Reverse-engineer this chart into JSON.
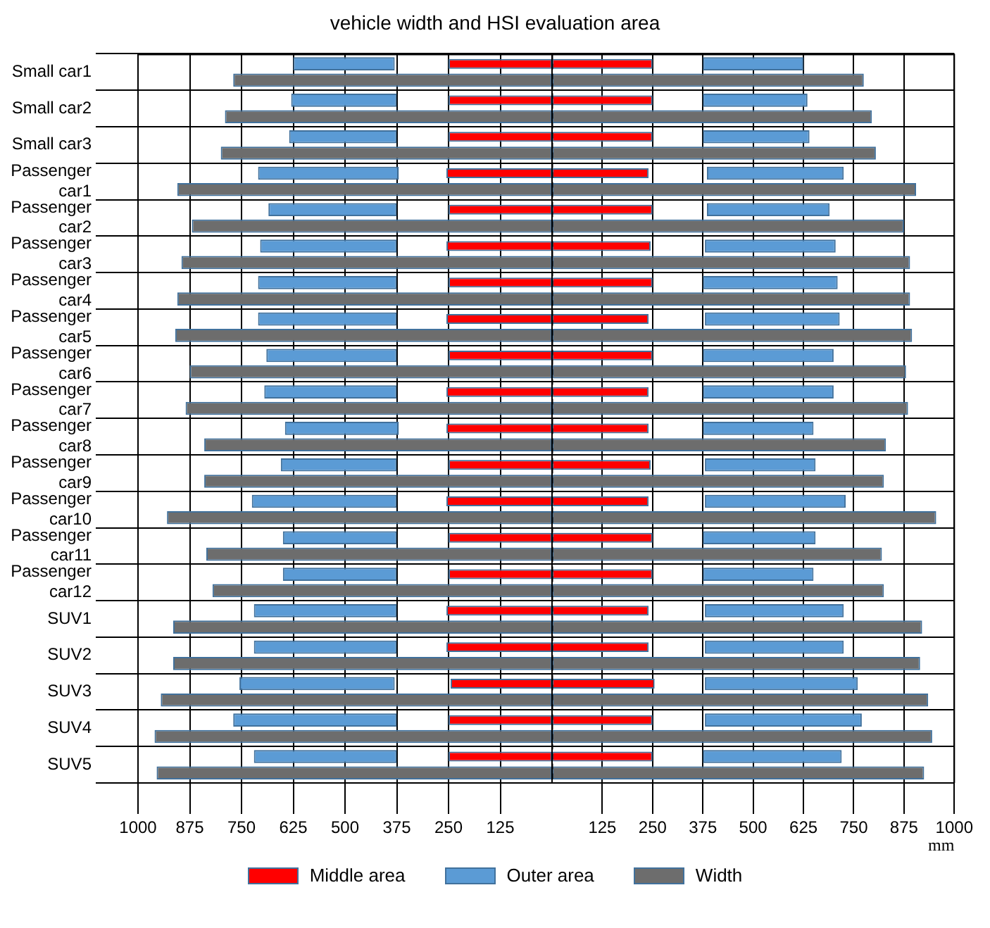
{
  "chart_data": [
    {
      "type": "bar",
      "orientation": "horizontal",
      "title": "vehicle width and HSI evaluation area",
      "legend": "bottom",
      "grid": true,
      "categories": [
        "Small car1",
        "Small car2",
        "Small car3",
        "Passenger car1",
        "Passenger car2",
        "Passenger car3",
        "Passenger car4",
        "Passenger car5",
        "Passenger car6",
        "Passenger car7",
        "Passenger car8",
        "Passenger car9",
        "Passenger car10",
        "Passenger car11",
        "Passenger car12",
        "SUV1",
        "SUV2",
        "SUV3",
        "SUV4",
        "SUV5"
      ],
      "series": [
        {
          "name": "Middle area",
          "color": "#ff0000",
          "values": [
            250,
            250,
            250,
            255,
            250,
            255,
            250,
            255,
            250,
            255,
            255,
            250,
            255,
            250,
            250,
            255,
            255,
            245,
            250,
            250
          ]
        },
        {
          "name": "Outer area",
          "color": "#5b9bd5",
          "base": [
            380,
            375,
            375,
            370,
            375,
            375,
            375,
            375,
            375,
            375,
            370,
            375,
            375,
            375,
            375,
            375,
            375,
            380,
            375,
            375
          ],
          "values": [
            245,
            255,
            260,
            340,
            310,
            330,
            335,
            335,
            315,
            320,
            275,
            280,
            350,
            275,
            275,
            345,
            345,
            375,
            395,
            345
          ]
        },
        {
          "name": "Width",
          "color": "#6d6d6d",
          "values": [
            770,
            790,
            800,
            905,
            870,
            895,
            905,
            910,
            875,
            885,
            840,
            840,
            930,
            835,
            820,
            915,
            915,
            945,
            960,
            955
          ]
        }
      ],
      "xlim": [
        1000,
        0
      ],
      "xticks": [
        1000,
        875,
        750,
        625,
        500,
        375,
        250,
        125
      ]
    },
    {
      "type": "bar",
      "orientation": "horizontal",
      "xlabel": "mm",
      "grid": true,
      "categories": [
        null,
        null,
        null,
        null,
        null,
        null,
        null,
        null,
        null,
        null,
        null,
        null,
        null,
        null,
        null,
        null,
        null,
        null,
        null,
        null
      ],
      "series": [
        {
          "color": "#ff0000",
          "values": [
            250,
            250,
            250,
            240,
            250,
            245,
            250,
            240,
            250,
            240,
            240,
            245,
            240,
            250,
            250,
            240,
            240,
            255,
            250,
            250
          ]
        },
        {
          "color": "#5b9bd5",
          "base": [
            375,
            375,
            375,
            385,
            385,
            380,
            375,
            380,
            375,
            375,
            375,
            380,
            380,
            375,
            375,
            380,
            380,
            380,
            380,
            375
          ],
          "values": [
            250,
            260,
            265,
            340,
            305,
            325,
            335,
            335,
            325,
            325,
            275,
            275,
            350,
            280,
            275,
            345,
            345,
            380,
            390,
            345
          ]
        },
        {
          "color": "#6d6d6d",
          "values": [
            775,
            795,
            805,
            905,
            875,
            890,
            890,
            895,
            880,
            885,
            830,
            825,
            955,
            820,
            825,
            920,
            915,
            935,
            945,
            925
          ]
        }
      ],
      "xlim": [
        0,
        1000
      ],
      "xticks": [
        125,
        250,
        375,
        500,
        625,
        750,
        875,
        1000
      ],
      "ref_lines": [
        {
          "axis": "x",
          "value": 0,
          "color": "#000000",
          "line_style": "dashed"
        }
      ]
    }
  ]
}
